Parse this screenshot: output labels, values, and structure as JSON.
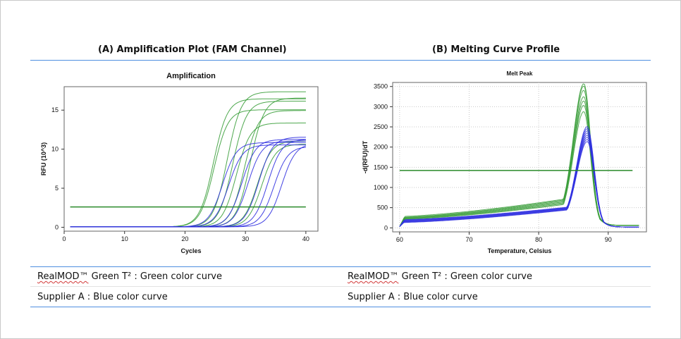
{
  "panels": {
    "a_title": "(A) Amplification Plot (FAM Channel)",
    "b_title": "(B) Melting Curve Profile"
  },
  "legend": {
    "line1_brand": "RealMOD™",
    "line1_rest": " Green T² : Green color curve",
    "line2": "Supplier A : Blue color curve"
  },
  "colors": {
    "green_curve": "#3a9e3a",
    "blue_curve": "#3030e0",
    "threshold": "#2a8a2a",
    "rule": "#4f8fe0"
  },
  "chart_data": [
    {
      "type": "line",
      "title": "Amplification",
      "xlabel": "Cycles",
      "ylabel": "RFU (10^3)",
      "xlim": [
        0,
        42
      ],
      "ylim": [
        -0.5,
        18
      ],
      "xticks": [
        0,
        10,
        20,
        30,
        40
      ],
      "yticks": [
        0,
        5,
        10,
        15
      ],
      "grid": false,
      "threshold": 2.6,
      "series_groups": [
        {
          "group": "green",
          "curves": [
            {
              "ct": 23.5,
              "plateau": 16.4
            },
            {
              "ct": 23.6,
              "plateau": 15.0
            },
            {
              "ct": 25.8,
              "plateau": 17.3
            },
            {
              "ct": 26.7,
              "plateau": 16.1
            },
            {
              "ct": 27.3,
              "plateau": 13.3
            },
            {
              "ct": 28.6,
              "plateau": 14.9
            },
            {
              "ct": 29.6,
              "plateau": 16.5
            },
            {
              "ct": 30.8,
              "plateau": 11.0
            },
            {
              "ct": 31.5,
              "plateau": 10.6
            }
          ]
        },
        {
          "group": "blue",
          "curves": [
            {
              "ct": 25.0,
              "plateau": 10.8
            },
            {
              "ct": 26.0,
              "plateau": 10.5
            },
            {
              "ct": 28.2,
              "plateau": 11.2
            },
            {
              "ct": 29.2,
              "plateau": 11.0
            },
            {
              "ct": 31.0,
              "plateau": 11.5
            },
            {
              "ct": 32.5,
              "plateau": 11.2
            },
            {
              "ct": 33.5,
              "plateau": 10.3
            },
            {
              "ct": 34.8,
              "plateau": 10.7
            }
          ]
        }
      ]
    },
    {
      "type": "line",
      "title": "Melt Peak",
      "xlabel": "Temperature, Celsius",
      "ylabel": "-d(RFU)/dT",
      "xlim": [
        59,
        95.5
      ],
      "ylim": [
        -100,
        3600
      ],
      "xticks": [
        60,
        70,
        80,
        90
      ],
      "yticks": [
        0,
        500,
        1000,
        1500,
        2000,
        2500,
        3000,
        3500
      ],
      "grid": true,
      "threshold": 1420,
      "series_groups": [
        {
          "group": "green",
          "peak_temperature": 86.5,
          "peaks": [
            3350,
            3300,
            3200,
            3050,
            2950,
            2850,
            2700
          ],
          "baseline_at_60": [
            280,
            260,
            250,
            240,
            230,
            220,
            210
          ],
          "baseline_at_80": [
            620,
            600,
            580,
            560,
            540,
            520,
            500
          ]
        },
        {
          "group": "blue",
          "peak_temperature": 87.0,
          "peaks": [
            2350,
            2300,
            2250,
            2200,
            2150,
            2100,
            2050,
            2000
          ],
          "baseline_at_60": [
            200,
            190,
            180,
            170,
            160,
            150,
            140,
            130
          ],
          "baseline_at_80": [
            440,
            430,
            420,
            410,
            400,
            390,
            380,
            370
          ]
        }
      ]
    }
  ]
}
